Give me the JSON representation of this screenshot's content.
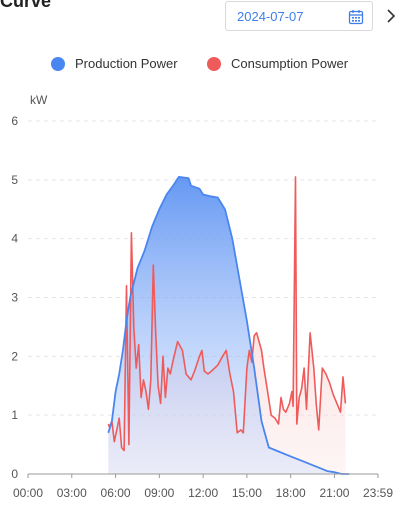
{
  "header": {
    "title": "Curve",
    "date_value": "2024-07-07"
  },
  "colors": {
    "production": "#4a86f0",
    "consumption": "#ef5b5b",
    "grid": "#e6e6e6",
    "axis_text": "#555555"
  },
  "chart_data": {
    "type": "area",
    "ylabel": "kW",
    "xlim": [
      "00:00",
      "23:59"
    ],
    "ylim": [
      0,
      6
    ],
    "yticks": [
      "0",
      "1",
      "2",
      "3",
      "4",
      "5",
      "6"
    ],
    "xticks": [
      "00:00",
      "03:00",
      "06:00",
      "09:00",
      "12:00",
      "15:00",
      "18:00",
      "21:00",
      "23:59"
    ],
    "grid": true,
    "legend_position": "top-center",
    "series": [
      {
        "name": "Production Power",
        "points": [
          [
            "05:30",
            0.7
          ],
          [
            "05:45",
            0.9
          ],
          [
            "06:00",
            1.4
          ],
          [
            "06:15",
            1.7
          ],
          [
            "06:30",
            2.1
          ],
          [
            "06:45",
            2.6
          ],
          [
            "07:00",
            3.0
          ],
          [
            "07:30",
            3.5
          ],
          [
            "08:00",
            3.8
          ],
          [
            "08:30",
            4.2
          ],
          [
            "09:00",
            4.5
          ],
          [
            "09:30",
            4.75
          ],
          [
            "10:00",
            4.92
          ],
          [
            "10:20",
            5.05
          ],
          [
            "11:00",
            5.03
          ],
          [
            "11:10",
            4.9
          ],
          [
            "11:45",
            4.85
          ],
          [
            "12:00",
            4.75
          ],
          [
            "12:30",
            4.72
          ],
          [
            "13:00",
            4.7
          ],
          [
            "13:30",
            4.5
          ],
          [
            "14:00",
            4.0
          ],
          [
            "14:30",
            3.3
          ],
          [
            "15:00",
            2.6
          ],
          [
            "15:30",
            1.8
          ],
          [
            "16:00",
            0.9
          ],
          [
            "16:30",
            0.45
          ],
          [
            "17:00",
            0.4
          ],
          [
            "18:00",
            0.3
          ],
          [
            "19:00",
            0.2
          ],
          [
            "19:30",
            0.15
          ],
          [
            "20:00",
            0.1
          ],
          [
            "20:30",
            0.05
          ],
          [
            "21:00",
            0.03
          ],
          [
            "21:30",
            0.0
          ],
          [
            "22:00",
            0.0
          ]
        ]
      },
      {
        "name": "Consumption Power",
        "points": [
          [
            "05:30",
            0.85
          ],
          [
            "05:35",
            0.8
          ],
          [
            "05:45",
            0.9
          ],
          [
            "05:55",
            0.55
          ],
          [
            "06:05",
            0.75
          ],
          [
            "06:15",
            0.95
          ],
          [
            "06:25",
            0.45
          ],
          [
            "06:35",
            0.4
          ],
          [
            "06:45",
            3.2
          ],
          [
            "06:55",
            0.5
          ],
          [
            "07:05",
            4.1
          ],
          [
            "07:15",
            2.5
          ],
          [
            "07:25",
            1.8
          ],
          [
            "07:35",
            2.2
          ],
          [
            "07:45",
            1.3
          ],
          [
            "07:55",
            1.6
          ],
          [
            "08:05",
            1.4
          ],
          [
            "08:15",
            1.1
          ],
          [
            "08:25",
            1.6
          ],
          [
            "08:35",
            3.55
          ],
          [
            "08:45",
            2.4
          ],
          [
            "08:55",
            1.5
          ],
          [
            "09:05",
            1.2
          ],
          [
            "09:15",
            2.0
          ],
          [
            "09:25",
            1.3
          ],
          [
            "09:35",
            1.8
          ],
          [
            "09:45",
            1.7
          ],
          [
            "09:55",
            1.9
          ],
          [
            "10:15",
            2.25
          ],
          [
            "10:35",
            2.1
          ],
          [
            "10:50",
            1.7
          ],
          [
            "11:10",
            1.6
          ],
          [
            "11:25",
            1.75
          ],
          [
            "11:45",
            2.0
          ],
          [
            "11:55",
            2.1
          ],
          [
            "12:05",
            1.75
          ],
          [
            "12:20",
            1.7
          ],
          [
            "12:35",
            1.75
          ],
          [
            "13:00",
            1.85
          ],
          [
            "13:20",
            2.0
          ],
          [
            "13:35",
            2.1
          ],
          [
            "13:50",
            1.7
          ],
          [
            "14:05",
            1.4
          ],
          [
            "14:20",
            0.7
          ],
          [
            "14:35",
            0.75
          ],
          [
            "14:45",
            0.7
          ],
          [
            "15:00",
            1.8
          ],
          [
            "15:10",
            2.1
          ],
          [
            "15:20",
            1.9
          ],
          [
            "15:30",
            2.35
          ],
          [
            "15:40",
            2.4
          ],
          [
            "16:00",
            2.1
          ],
          [
            "16:10",
            1.8
          ],
          [
            "16:25",
            1.4
          ],
          [
            "16:40",
            1.0
          ],
          [
            "16:55",
            0.95
          ],
          [
            "17:10",
            0.85
          ],
          [
            "17:20",
            1.3
          ],
          [
            "17:30",
            1.1
          ],
          [
            "17:40",
            1.05
          ],
          [
            "17:55",
            1.2
          ],
          [
            "18:05",
            1.4
          ],
          [
            "18:10",
            1.15
          ],
          [
            "18:20",
            5.05
          ],
          [
            "18:25",
            0.85
          ],
          [
            "18:35",
            1.3
          ],
          [
            "18:45",
            1.45
          ],
          [
            "18:55",
            1.8
          ],
          [
            "19:05",
            1.1
          ],
          [
            "19:20",
            2.4
          ],
          [
            "19:35",
            1.8
          ],
          [
            "19:45",
            1.2
          ],
          [
            "19:55",
            0.75
          ],
          [
            "20:10",
            1.8
          ],
          [
            "20:25",
            1.7
          ],
          [
            "20:40",
            1.55
          ],
          [
            "20:55",
            1.35
          ],
          [
            "21:10",
            1.2
          ],
          [
            "21:25",
            1.05
          ],
          [
            "21:35",
            1.65
          ],
          [
            "21:45",
            1.2
          ]
        ]
      }
    ]
  }
}
